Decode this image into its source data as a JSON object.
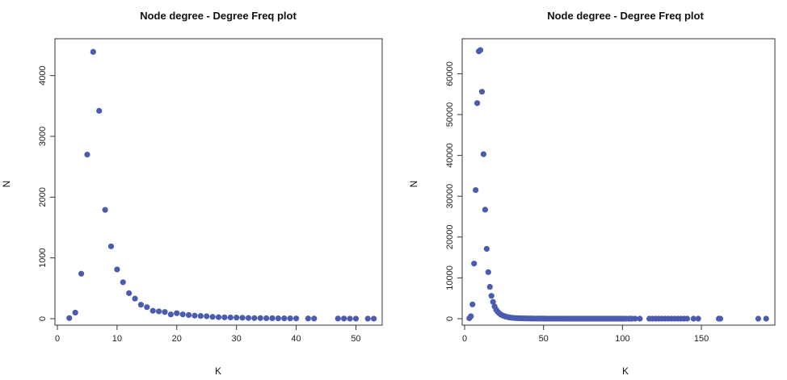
{
  "chart_data": [
    {
      "type": "scatter",
      "title": "Node degree - Degree Freq plot",
      "xlabel": "K",
      "ylabel": "N",
      "xlim": [
        0,
        54
      ],
      "ylim": [
        0,
        4500
      ],
      "xticks": [
        0,
        10,
        20,
        30,
        40,
        50
      ],
      "yticks": [
        0,
        1000,
        2000,
        3000,
        4000
      ],
      "grid": false,
      "point_color": "#4a5bb0",
      "points": [
        [
          2,
          10
        ],
        [
          3,
          100
        ],
        [
          4,
          740
        ],
        [
          5,
          2700
        ],
        [
          6,
          4390
        ],
        [
          7,
          3420
        ],
        [
          8,
          1790
        ],
        [
          9,
          1190
        ],
        [
          10,
          810
        ],
        [
          11,
          600
        ],
        [
          12,
          420
        ],
        [
          13,
          330
        ],
        [
          14,
          230
        ],
        [
          15,
          190
        ],
        [
          16,
          130
        ],
        [
          17,
          120
        ],
        [
          18,
          110
        ],
        [
          19,
          70
        ],
        [
          20,
          90
        ],
        [
          21,
          70
        ],
        [
          22,
          60
        ],
        [
          23,
          50
        ],
        [
          24,
          45
        ],
        [
          25,
          40
        ],
        [
          26,
          30
        ],
        [
          27,
          25
        ],
        [
          28,
          22
        ],
        [
          29,
          20
        ],
        [
          30,
          18
        ],
        [
          31,
          15
        ],
        [
          32,
          12
        ],
        [
          33,
          10
        ],
        [
          34,
          10
        ],
        [
          35,
          8
        ],
        [
          36,
          8
        ],
        [
          37,
          6
        ],
        [
          38,
          5
        ],
        [
          39,
          5
        ],
        [
          40,
          4
        ],
        [
          42,
          3
        ],
        [
          43,
          2
        ],
        [
          47,
          2
        ],
        [
          48,
          2
        ],
        [
          49,
          1
        ],
        [
          50,
          1
        ],
        [
          52,
          1
        ],
        [
          53,
          1
        ]
      ]
    },
    {
      "type": "scatter",
      "title": "Node degree - Degree Freq plot",
      "xlabel": "K",
      "ylabel": "N",
      "xlim": [
        0,
        195
      ],
      "ylim": [
        0,
        67000
      ],
      "xticks": [
        0,
        50,
        100,
        150
      ],
      "yticks": [
        0,
        10000,
        20000,
        30000,
        40000,
        50000,
        60000
      ],
      "grid": false,
      "point_color": "#4a5bb0",
      "points": [
        [
          3,
          100
        ],
        [
          4,
          600
        ],
        [
          5,
          3500
        ],
        [
          6,
          13500
        ],
        [
          7,
          31500
        ],
        [
          8,
          52800
        ],
        [
          9,
          65500
        ],
        [
          10,
          65800
        ],
        [
          11,
          55600
        ],
        [
          12,
          40300
        ],
        [
          13,
          26700
        ],
        [
          14,
          17100
        ],
        [
          15,
          11400
        ],
        [
          16,
          7800
        ],
        [
          17,
          5600
        ],
        [
          18,
          4100
        ],
        [
          19,
          3000
        ],
        [
          20,
          2200
        ],
        [
          21,
          1700
        ],
        [
          22,
          1300
        ],
        [
          23,
          1000
        ],
        [
          24,
          800
        ],
        [
          25,
          650
        ],
        [
          26,
          520
        ],
        [
          27,
          420
        ],
        [
          28,
          340
        ],
        [
          29,
          280
        ],
        [
          30,
          230
        ],
        [
          31,
          190
        ],
        [
          32,
          160
        ],
        [
          33,
          140
        ],
        [
          34,
          120
        ],
        [
          35,
          100
        ],
        [
          36,
          90
        ],
        [
          37,
          80
        ],
        [
          38,
          70
        ],
        [
          39,
          60
        ],
        [
          40,
          55
        ],
        [
          41,
          50
        ],
        [
          42,
          45
        ],
        [
          43,
          40
        ],
        [
          44,
          36
        ],
        [
          45,
          32
        ],
        [
          46,
          29
        ],
        [
          47,
          26
        ],
        [
          48,
          24
        ],
        [
          49,
          22
        ],
        [
          50,
          20
        ],
        [
          51,
          18
        ],
        [
          52,
          17
        ],
        [
          53,
          16
        ],
        [
          54,
          15
        ],
        [
          55,
          14
        ],
        [
          56,
          13
        ],
        [
          57,
          12
        ],
        [
          58,
          11
        ],
        [
          59,
          10
        ],
        [
          60,
          10
        ],
        [
          61,
          9
        ],
        [
          62,
          9
        ],
        [
          63,
          8
        ],
        [
          64,
          8
        ],
        [
          65,
          7
        ],
        [
          66,
          7
        ],
        [
          67,
          6
        ],
        [
          68,
          6
        ],
        [
          69,
          6
        ],
        [
          70,
          5
        ],
        [
          71,
          5
        ],
        [
          72,
          5
        ],
        [
          73,
          5
        ],
        [
          74,
          4
        ],
        [
          75,
          4
        ],
        [
          76,
          4
        ],
        [
          77,
          4
        ],
        [
          78,
          4
        ],
        [
          79,
          3
        ],
        [
          80,
          3
        ],
        [
          81,
          3
        ],
        [
          82,
          3
        ],
        [
          83,
          3
        ],
        [
          84,
          3
        ],
        [
          85,
          3
        ],
        [
          86,
          2
        ],
        [
          87,
          2
        ],
        [
          88,
          2
        ],
        [
          89,
          2
        ],
        [
          90,
          2
        ],
        [
          91,
          2
        ],
        [
          92,
          2
        ],
        [
          93,
          2
        ],
        [
          94,
          2
        ],
        [
          95,
          2
        ],
        [
          96,
          2
        ],
        [
          97,
          2
        ],
        [
          98,
          2
        ],
        [
          99,
          2
        ],
        [
          100,
          1
        ],
        [
          101,
          1
        ],
        [
          102,
          1
        ],
        [
          104,
          1
        ],
        [
          105,
          1
        ],
        [
          106,
          1
        ],
        [
          108,
          1
        ],
        [
          111,
          1
        ],
        [
          117,
          1
        ],
        [
          119,
          1
        ],
        [
          121,
          1
        ],
        [
          123,
          1
        ],
        [
          125,
          1
        ],
        [
          127,
          1
        ],
        [
          129,
          1
        ],
        [
          131,
          1
        ],
        [
          133,
          1
        ],
        [
          135,
          1
        ],
        [
          137,
          1
        ],
        [
          139,
          1
        ],
        [
          141,
          1
        ],
        [
          145,
          1
        ],
        [
          148,
          1
        ],
        [
          161,
          1
        ],
        [
          162,
          1
        ],
        [
          186,
          1
        ],
        [
          191,
          1
        ]
      ]
    }
  ]
}
